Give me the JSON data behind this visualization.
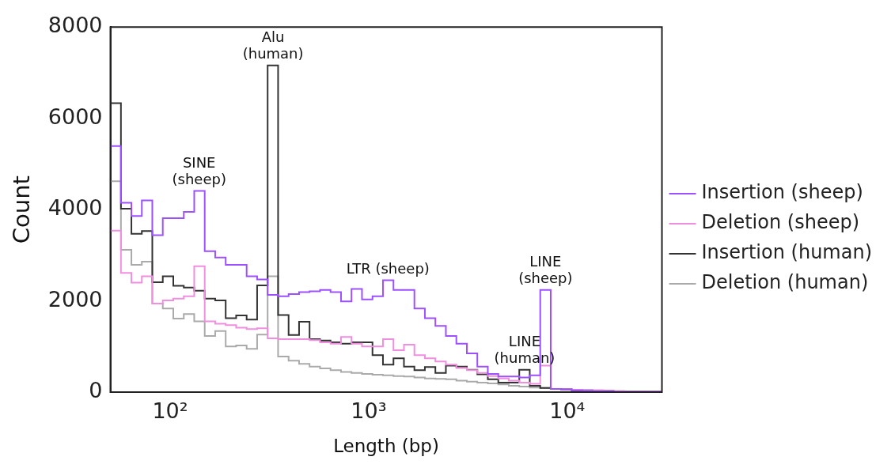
{
  "chart_data": {
    "type": "histogram",
    "xlabel": "Length (bp)",
    "ylabel": "Count",
    "log": "x",
    "legend": "right",
    "xlim": [
      50,
      30000
    ],
    "xticks": [
      {
        "value": 100,
        "label": "10²"
      },
      {
        "value": 1000,
        "label": "10³"
      },
      {
        "value": 10000,
        "label": "10⁴"
      }
    ],
    "ylim": [
      0,
      8000
    ],
    "yticks": [
      0,
      2000,
      4000,
      6000,
      8000
    ],
    "bins": [
      50,
      56.5,
      63.8,
      72,
      81.3,
      91.8,
      103.7,
      117.1,
      132.2,
      149.3,
      168.6,
      190.4,
      215,
      242.8,
      274.2,
      309.7,
      349.7,
      395,
      446,
      503.7,
      568.8,
      642.4,
      725.5,
      819.3,
      925.2,
      1045,
      1180,
      1333,
      1505,
      1699,
      1919,
      2167,
      2448,
      2764,
      3122,
      3525,
      3981,
      4496,
      5077,
      5734,
      6475,
      7312,
      8258,
      9326,
      10530,
      11890,
      13430,
      15170,
      17130,
      19350,
      21850,
      24670,
      27860,
      30000
    ],
    "series": [
      {
        "name": "Insertion (sheep)",
        "color": "#9d50ff",
        "values": [
          5390,
          4150,
          3860,
          4200,
          3440,
          3810,
          3810,
          3950,
          4410,
          3090,
          2950,
          2790,
          2790,
          2540,
          2470,
          2130,
          2100,
          2150,
          2190,
          2210,
          2240,
          2190,
          1990,
          2260,
          2030,
          2100,
          2450,
          2240,
          2240,
          1830,
          1620,
          1450,
          1230,
          1060,
          850,
          560,
          400,
          340,
          340,
          320,
          370,
          2240,
          70,
          60,
          40,
          30,
          20,
          20,
          10,
          10,
          10,
          10,
          10
        ]
      },
      {
        "name": "Deletion (sheep)",
        "color": "#f08ee0",
        "values": [
          3540,
          2610,
          2400,
          2540,
          1940,
          2010,
          2050,
          2100,
          2760,
          1550,
          1500,
          1470,
          1410,
          1380,
          1400,
          1180,
          1160,
          1160,
          1160,
          1140,
          1090,
          1060,
          1210,
          1060,
          1000,
          1000,
          1160,
          920,
          1040,
          810,
          740,
          670,
          600,
          530,
          480,
          420,
          350,
          300,
          250,
          210,
          180,
          580,
          70,
          60,
          50,
          40,
          40,
          30,
          20,
          10,
          10,
          10,
          10
        ]
      },
      {
        "name": "Insertion (human)",
        "color": "#333333",
        "values": [
          6330,
          4020,
          3470,
          3530,
          2410,
          2540,
          2330,
          2290,
          2220,
          2050,
          2010,
          1620,
          1680,
          1590,
          2340,
          7160,
          1690,
          1250,
          1540,
          1160,
          1130,
          1090,
          1060,
          1090,
          1090,
          810,
          600,
          740,
          560,
          480,
          550,
          420,
          580,
          560,
          490,
          390,
          280,
          210,
          210,
          490,
          140,
          90,
          70,
          60,
          40,
          40,
          30,
          20,
          10,
          10,
          10,
          10,
          10
        ]
      },
      {
        "name": "Deletion (human)",
        "color": "#aaaaaa",
        "values": [
          4620,
          3120,
          2790,
          2860,
          1940,
          1830,
          1610,
          1710,
          1550,
          1230,
          1340,
          1000,
          1020,
          950,
          1260,
          2540,
          780,
          690,
          620,
          560,
          520,
          480,
          440,
          420,
          400,
          380,
          370,
          350,
          340,
          320,
          300,
          290,
          280,
          250,
          230,
          210,
          190,
          170,
          140,
          120,
          100,
          90,
          70,
          60,
          50,
          40,
          40,
          30,
          20,
          10,
          10,
          10,
          10
        ]
      }
    ],
    "annotations": [
      {
        "text": "SINE\n(sheep)",
        "x": 140,
        "y": 4410
      },
      {
        "text": "Alu\n(human)",
        "x": 330,
        "y": 7160
      },
      {
        "text": "LTR (sheep)",
        "x": 1250,
        "y": 2450
      },
      {
        "text": "LINE\n(sheep)",
        "x": 7770,
        "y": 2240
      },
      {
        "text": "LINE\n(human)",
        "x": 6100,
        "y": 490
      }
    ]
  }
}
